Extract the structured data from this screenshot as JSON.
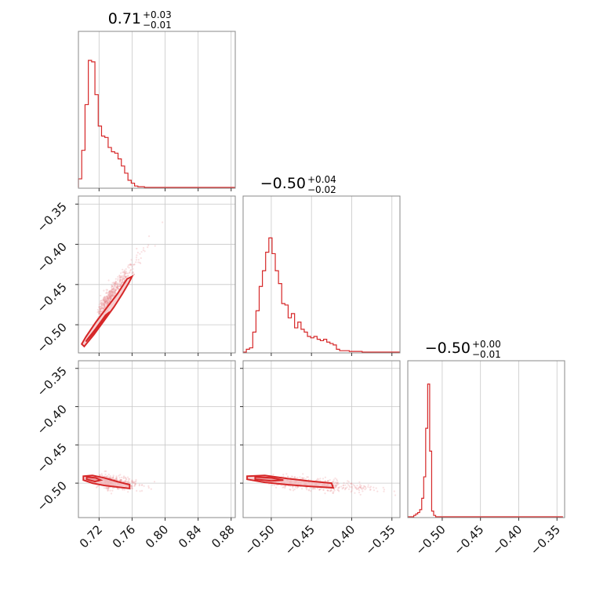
{
  "chart_data": {
    "type": "corner",
    "color": "#d62728",
    "grid": true,
    "parameters": [
      {
        "median": "0.71",
        "plus": "+0.03",
        "minus": "−0.01",
        "range": [
          0.695,
          0.885
        ],
        "ticks": [
          "0.72",
          "0.76",
          "0.80",
          "0.84",
          "0.88"
        ],
        "tick_values": [
          0.72,
          0.76,
          0.8,
          0.84,
          0.88
        ]
      },
      {
        "median": "−0.50",
        "plus": "+0.04",
        "minus": "−0.02",
        "range": [
          -0.535,
          -0.34
        ],
        "ticks": [
          "−0.50",
          "−0.45",
          "−0.40",
          "−0.35"
        ],
        "tick_values": [
          -0.5,
          -0.45,
          -0.4,
          -0.35
        ]
      },
      {
        "median": "−0.50",
        "plus": "+0.00",
        "minus": "−0.01",
        "range": [
          -0.545,
          -0.34
        ],
        "ticks": [
          "−0.50",
          "−0.45",
          "−0.40",
          "−0.35"
        ],
        "tick_values": [
          -0.5,
          -0.45,
          -0.4,
          -0.35
        ]
      }
    ],
    "y_ticks": [
      "−0.35",
      "−0.40",
      "−0.45",
      "−0.50"
    ],
    "y_tick_values": [
      -0.35,
      -0.4,
      -0.45,
      -0.5
    ],
    "y_range": [
      -0.535,
      -0.34
    ],
    "y_range_bottom": [
      -0.545,
      -0.34
    ],
    "histograms": [
      {
        "edges_start": 0.695,
        "bin_width": 0.004,
        "counts": [
          0.06,
          0.26,
          0.58,
          0.89,
          0.88,
          0.65,
          0.43,
          0.36,
          0.35,
          0.28,
          0.25,
          0.24,
          0.2,
          0.15,
          0.1,
          0.05,
          0.03,
          0.01,
          0.005,
          0.005,
          0,
          0,
          0,
          0,
          0,
          0,
          0,
          0,
          0,
          0,
          0,
          0,
          0,
          0,
          0,
          0,
          0,
          0,
          0,
          0,
          0,
          0,
          0,
          0,
          0,
          0,
          0,
          0
        ]
      },
      {
        "edges_start": -0.535,
        "bin_width": 0.004,
        "counts": [
          0,
          0.02,
          0.03,
          0.14,
          0.29,
          0.46,
          0.57,
          0.7,
          0.8,
          0.69,
          0.57,
          0.48,
          0.34,
          0.33,
          0.24,
          0.27,
          0.17,
          0.21,
          0.16,
          0.14,
          0.11,
          0.1,
          0.11,
          0.09,
          0.08,
          0.09,
          0.07,
          0.06,
          0.05,
          0.02,
          0.01,
          0.01,
          0.01,
          0.005,
          0.005,
          0.005,
          0.005,
          0,
          0,
          0,
          0,
          0,
          0,
          0,
          0,
          0,
          0,
          0,
          0
        ]
      },
      {
        "edges_start": -0.545,
        "bin_width": 0.0026,
        "counts": [
          0,
          0,
          0,
          0.01,
          0.02,
          0.03,
          0.05,
          0.13,
          0.28,
          0.62,
          0.93,
          0.46,
          0.04,
          0.01,
          0,
          0,
          0,
          0,
          0,
          0,
          0,
          0,
          0,
          0,
          0,
          0,
          0,
          0,
          0,
          0,
          0,
          0,
          0,
          0,
          0,
          0,
          0,
          0,
          0,
          0,
          0,
          0,
          0,
          0,
          0,
          0,
          0,
          0,
          0,
          0,
          0,
          0,
          0,
          0,
          0,
          0,
          0,
          0,
          0,
          0,
          0,
          0,
          0,
          0,
          0,
          0,
          0,
          0,
          0,
          0,
          0,
          0,
          0,
          0,
          0,
          0,
          0,
          0
        ]
      }
    ],
    "scatter_clouds": [
      {
        "pair": [
          0,
          1
        ],
        "center": [
          0.73,
          -0.47
        ],
        "slope": 1.43,
        "spread_x": 0.034,
        "spread_perp": 0.006
      },
      {
        "pair": [
          0,
          2
        ],
        "center": [
          0.73,
          -0.498
        ],
        "slope": -0.12,
        "spread_x": 0.036,
        "spread_perp": 0.004
      },
      {
        "pair": [
          1,
          2
        ],
        "center": [
          -0.47,
          -0.499
        ],
        "slope": -0.1,
        "spread_x": 0.09,
        "spread_perp": 0.004
      }
    ],
    "contours": [
      {
        "pair": [
          0,
          1
        ],
        "outer": [
          [
            0.702,
            -0.527
          ],
          [
            0.714,
            -0.512
          ],
          [
            0.726,
            -0.495
          ],
          [
            0.738,
            -0.478
          ],
          [
            0.748,
            -0.462
          ],
          [
            0.756,
            -0.448
          ],
          [
            0.76,
            -0.44
          ],
          [
            0.754,
            -0.443
          ],
          [
            0.742,
            -0.462
          ],
          [
            0.73,
            -0.478
          ],
          [
            0.716,
            -0.497
          ],
          [
            0.704,
            -0.515
          ],
          [
            0.699,
            -0.524
          ]
        ],
        "inner": [
          [
            0.704,
            -0.521
          ],
          [
            0.716,
            -0.507
          ],
          [
            0.727,
            -0.491
          ],
          [
            0.733,
            -0.484
          ],
          [
            0.728,
            -0.488
          ],
          [
            0.716,
            -0.505
          ],
          [
            0.706,
            -0.518
          ]
        ]
      },
      {
        "pair": [
          0,
          2
        ],
        "outer": [
          [
            0.701,
            -0.491
          ],
          [
            0.712,
            -0.49
          ],
          [
            0.726,
            -0.493
          ],
          [
            0.742,
            -0.498
          ],
          [
            0.757,
            -0.502
          ],
          [
            0.757,
            -0.507
          ],
          [
            0.742,
            -0.505
          ],
          [
            0.726,
            -0.503
          ],
          [
            0.712,
            -0.5
          ],
          [
            0.701,
            -0.496
          ]
        ],
        "inner": [
          [
            0.705,
            -0.492
          ],
          [
            0.716,
            -0.493
          ],
          [
            0.722,
            -0.496
          ],
          [
            0.715,
            -0.498
          ],
          [
            0.705,
            -0.495
          ]
        ]
      },
      {
        "pair": [
          1,
          2
        ],
        "outer": [
          [
            -0.53,
            -0.491
          ],
          [
            -0.508,
            -0.49
          ],
          [
            -0.48,
            -0.494
          ],
          [
            -0.455,
            -0.497
          ],
          [
            -0.425,
            -0.5
          ],
          [
            -0.423,
            -0.506
          ],
          [
            -0.455,
            -0.504
          ],
          [
            -0.48,
            -0.502
          ],
          [
            -0.508,
            -0.499
          ],
          [
            -0.53,
            -0.495
          ]
        ],
        "inner": [
          [
            -0.52,
            -0.492
          ],
          [
            -0.5,
            -0.493
          ],
          [
            -0.485,
            -0.496
          ],
          [
            -0.5,
            -0.497
          ],
          [
            -0.52,
            -0.495
          ]
        ]
      }
    ]
  }
}
